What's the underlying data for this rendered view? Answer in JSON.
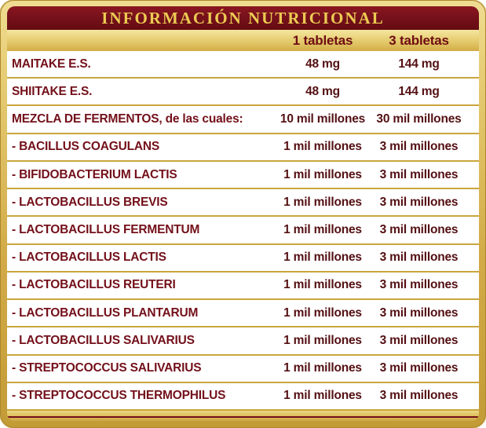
{
  "header": {
    "title": "INFORMACIÓN NUTRICIONAL"
  },
  "columns": {
    "col1": "1 tabletas",
    "col2": "3 tabletas"
  },
  "rows": [
    {
      "name": "MAITAKE E.S.",
      "v1": "48 mg",
      "v2": "144 mg"
    },
    {
      "name": "SHIITAKE E.S.",
      "v1": "48 mg",
      "v2": "144 mg"
    },
    {
      "name": "MEZCLA DE FERMENTOS, de las cuales:",
      "v1": "10 mil millones",
      "v2": "30 mil millones"
    },
    {
      "name": "- BACILLUS COAGULANS",
      "v1": "1 mil millones",
      "v2": "3 mil millones"
    },
    {
      "name": "- BIFIDOBACTERIUM LACTIS",
      "v1": "1 mil millones",
      "v2": "3 mil millones"
    },
    {
      "name": "- LACTOBACILLUS BREVIS",
      "v1": "1 mil millones",
      "v2": "3 mil millones"
    },
    {
      "name": "- LACTOBACILLUS FERMENTUM",
      "v1": "1 mil millones",
      "v2": "3 mil millones"
    },
    {
      "name": "- LACTOBACILLUS LACTIS",
      "v1": "1 mil millones",
      "v2": "3 mil millones"
    },
    {
      "name": "- LACTOBACILLUS REUTERI",
      "v1": "1 mil millones",
      "v2": "3 mil millones"
    },
    {
      "name": "- LACTOBACILLUS PLANTARUM",
      "v1": "1 mil millones",
      "v2": "3 mil millones"
    },
    {
      "name": "- LACTOBACILLUS SALIVARIUS",
      "v1": "1 mil millones",
      "v2": "3 mil millones"
    },
    {
      "name": "- STREPTOCOCCUS SALIVARIUS",
      "v1": "1 mil millones",
      "v2": "3 mil millones"
    },
    {
      "name": "- STREPTOCOCCUS THERMOPHILUS",
      "v1": "1 mil millones",
      "v2": "3 mil millones"
    }
  ],
  "colors": {
    "maroon": "#73101a",
    "title_gold": "#eccb52",
    "gold_light": "#f2e198",
    "gold_dark": "#c49b36",
    "value_text": "#541013",
    "row_background": "#ffffff"
  }
}
